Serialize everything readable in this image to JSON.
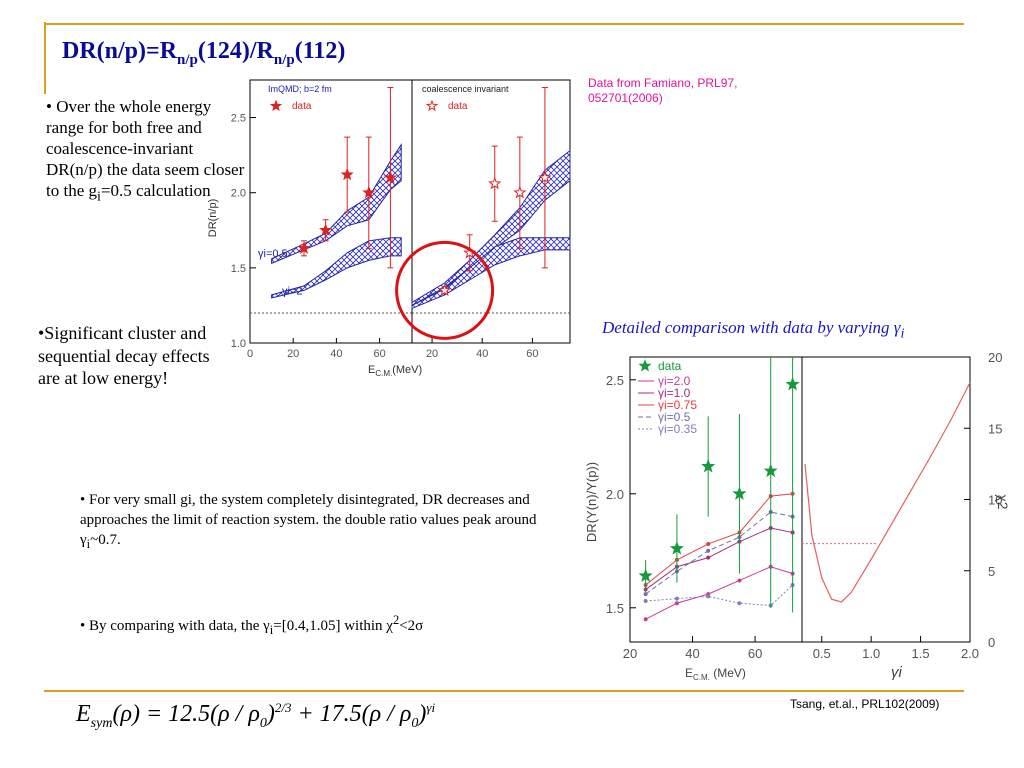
{
  "slide": {
    "title_main": "DR(n/p)=R",
    "title_sub1": "n/p",
    "title_mid": "(124)/R",
    "title_sub2": "n/p",
    "title_end": "(112)",
    "famiano": "Data from Famiano, PRL97, 052701(2006)",
    "bullet1": "• Over the whole energy range for both free and coalescence-invariant DR(n/p) the data seem closer to the g",
    "bullet1_sub": "i",
    "bullet1_end": "=0.5 calculation",
    "bullet2": "•Significant cluster and sequential decay effects are at low energy!",
    "detailed": "Detailed comparison with data by varying γ",
    "detailed_sub": "i",
    "bullet3_a": "•  For very small gi, the system completely disintegrated, DR decreases and approaches the limit of reaction system. the double ratio values peak around γ",
    "bullet3_sub": "i",
    "bullet3_b": "~0.7.",
    "bullet4_a": "•  By comparing with data, the γ",
    "bullet4_sub": "i",
    "bullet4_b": "=[0.4,1.05] within χ",
    "bullet4_sup": "2",
    "bullet4_c": "<2σ",
    "tsang": "Tsang, et.al., PRL102(2009)",
    "formula_parts": {
      "E": "E",
      "sym": "sym",
      "eq": "(ρ) = 12.5(ρ / ρ",
      "zero1": "0",
      "pow1": "2/3",
      "plus": " + 17.5(ρ / ρ",
      "zero2": "0",
      "pow2": "γi"
    }
  },
  "colors": {
    "title": "#0a0a9a",
    "famiano": "#e0139a",
    "detailed": "#1616c8",
    "rule": "#d8a31a",
    "band": "#2222aa",
    "data_red": "#dd2222",
    "data_green": "#169a3c",
    "circle": "#dd1111"
  },
  "chart_data": [
    {
      "type": "line",
      "panel": "left",
      "legend": [
        "ImQMD; b=2 fm",
        "data"
      ],
      "xlabel": "E",
      "xlabel_sub": "C.M.",
      "xlabel_unit": "(MeV)",
      "ylabel": "DR(n/p)",
      "xlim": [
        0,
        75
      ],
      "ylim": [
        1.0,
        2.75
      ],
      "xticks": [
        "0",
        "20",
        "40",
        "60"
      ],
      "yticks": [
        "1.0",
        "1.5",
        "2.0",
        "2.5"
      ],
      "band_labels": [
        {
          "text": "γi=0.5"
        },
        {
          "text": "γi=2"
        }
      ],
      "data": {
        "x": [
          25,
          35,
          45,
          55,
          65
        ],
        "y": [
          1.63,
          1.75,
          2.12,
          2.0,
          2.1
        ],
        "err": [
          0.05,
          0.07,
          0.25,
          0.37,
          0.6
        ]
      },
      "reference_line": 1.2
    },
    {
      "type": "line",
      "panel": "middle",
      "legend": [
        "coalescence invariant",
        "data"
      ],
      "xlabel": "",
      "xticks": [
        "20",
        "40",
        "60"
      ],
      "data": {
        "x": [
          25,
          35,
          45,
          55,
          65
        ],
        "y": [
          1.35,
          1.6,
          2.06,
          2.0,
          2.1
        ],
        "err": [
          0.02,
          0.12,
          0.25,
          0.37,
          0.6
        ]
      },
      "reference_line": 1.2
    },
    {
      "type": "line",
      "panel": "right-left",
      "legend": [
        "data",
        "γi=2.0",
        "γi=1.0",
        "γi=0.75",
        "γi=0.5",
        "γi=0.35"
      ],
      "xlabel": "E",
      "xlabel_sub": "C.M.",
      "xlabel_unit": "(MeV)",
      "ylabel": "DR(Y(n)/Y(p))",
      "xlim": [
        20,
        75
      ],
      "ylim": [
        1.35,
        2.6
      ],
      "xticks": [
        "20",
        "40",
        "60"
      ],
      "yticks": [
        "1.5",
        "2.0",
        "2.5"
      ],
      "data": {
        "x": [
          25,
          35,
          45,
          55,
          65,
          72
        ],
        "y": [
          1.64,
          1.76,
          2.12,
          2.0,
          2.1,
          2.48
        ],
        "err": [
          0.07,
          0.15,
          0.22,
          0.35,
          0.6,
          1.0
        ]
      },
      "series": [
        {
          "name": "γi=2.0",
          "x": [
            25,
            35,
            45,
            55,
            65,
            72
          ],
          "values": [
            1.45,
            1.52,
            1.56,
            1.62,
            1.68,
            1.65
          ]
        },
        {
          "name": "γi=1.0",
          "x": [
            25,
            35,
            45,
            55,
            65,
            72
          ],
          "values": [
            1.58,
            1.68,
            1.72,
            1.79,
            1.85,
            1.83
          ]
        },
        {
          "name": "γi=0.75",
          "x": [
            25,
            35,
            45,
            55,
            65,
            72
          ],
          "values": [
            1.6,
            1.71,
            1.78,
            1.83,
            1.99,
            2.0
          ]
        },
        {
          "name": "γi=0.5",
          "x": [
            25,
            35,
            45,
            55,
            65,
            72
          ],
          "values": [
            1.56,
            1.66,
            1.75,
            1.81,
            1.92,
            1.9
          ]
        },
        {
          "name": "γi=0.35",
          "x": [
            25,
            35,
            45,
            55,
            65,
            72
          ],
          "values": [
            1.53,
            1.54,
            1.55,
            1.52,
            1.51,
            1.6
          ]
        }
      ]
    },
    {
      "type": "line",
      "panel": "right-right",
      "xlabel": "γi",
      "ylabel": "χ2",
      "xlim": [
        0.3,
        2.0
      ],
      "ylim": [
        0,
        20
      ],
      "xticks": [
        "0.5",
        "1.0",
        "1.5",
        "2.0"
      ],
      "yticks": [
        "0",
        "5",
        "10",
        "15",
        "20"
      ],
      "series": [
        {
          "name": "χ2",
          "x": [
            0.33,
            0.4,
            0.5,
            0.6,
            0.7,
            0.8,
            1.0,
            1.2,
            1.4,
            1.6,
            1.8,
            2.0
          ],
          "values": [
            12.5,
            7.5,
            4.5,
            3.0,
            2.8,
            3.5,
            5.8,
            8.2,
            10.6,
            13.0,
            15.5,
            18.2
          ]
        }
      ],
      "threshold": {
        "y": 6.9,
        "x": [
          0.3,
          1.05
        ]
      }
    }
  ]
}
